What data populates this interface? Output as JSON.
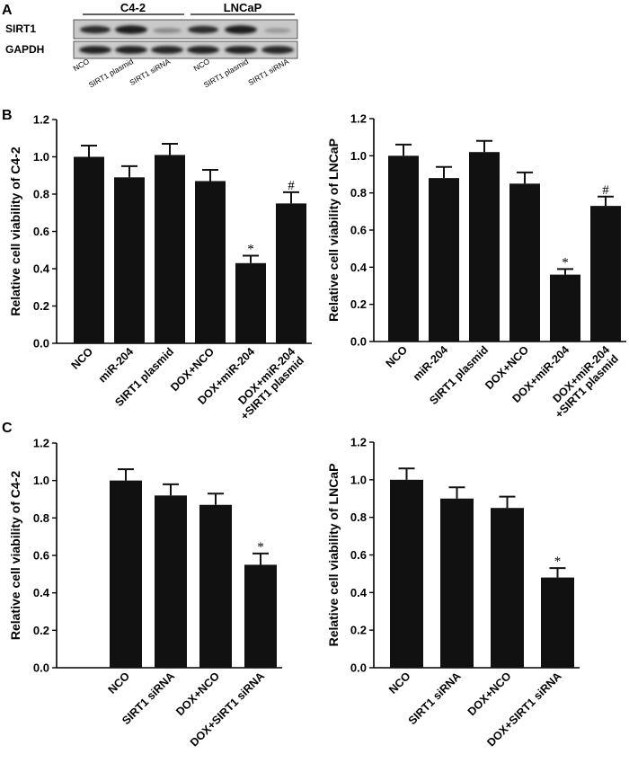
{
  "panel_letters": {
    "a": "A",
    "b": "B",
    "c": "C"
  },
  "blot": {
    "groups": [
      "C4-2",
      "LNCaP"
    ],
    "rows": [
      "SIRT1",
      "GAPDH"
    ],
    "lanes": [
      "NCO",
      "SIRT1 plasmid",
      "SIRT1 siRNA",
      "NCO",
      "SIRT1 plasmid",
      "SIRT1 siRNA"
    ]
  },
  "chart_data": [
    {
      "type": "bar",
      "panel": "B",
      "categories": [
        "NCO",
        "miR-204",
        "SIRT1 plasmid",
        "DOX+NCO",
        "DOX+miR-204",
        "DOX+miR-204 +SIRT1 plasmid"
      ],
      "values": [
        1.0,
        0.89,
        1.01,
        0.87,
        0.43,
        0.75
      ],
      "errors": [
        0.06,
        0.06,
        0.06,
        0.06,
        0.04,
        0.06
      ],
      "annotations": [
        "",
        "",
        "",
        "",
        "*",
        "#"
      ],
      "ylabel": "Relative cell viability of C4-2",
      "ylim": [
        0,
        1.2
      ],
      "yticks": [
        "0.0",
        "0.2",
        "0.4",
        "0.6",
        "0.8",
        "1.0",
        "1.2"
      ],
      "bar_color": "#111111"
    },
    {
      "type": "bar",
      "panel": "B",
      "categories": [
        "NCO",
        "miR-204",
        "SIRT1 plasmid",
        "DOX+NCO",
        "DOX+miR-204",
        "DOX+miR-204 +SIRT1 plasmid"
      ],
      "values": [
        1.0,
        0.88,
        1.02,
        0.85,
        0.36,
        0.73
      ],
      "errors": [
        0.06,
        0.06,
        0.06,
        0.06,
        0.03,
        0.05
      ],
      "annotations": [
        "",
        "",
        "",
        "",
        "*",
        "#"
      ],
      "ylabel": "Relative cell viability of LNCaP",
      "ylim": [
        0,
        1.2
      ],
      "yticks": [
        "0.0",
        "0.2",
        "0.4",
        "0.6",
        "0.8",
        "1.0",
        "1.2"
      ],
      "bar_color": "#111111"
    },
    {
      "type": "bar",
      "panel": "C",
      "categories": [
        "NCO",
        "SIRT1 siRNA",
        "DOX+NCO",
        "DOX+SIRT1 siRNA"
      ],
      "values": [
        1.0,
        0.92,
        0.87,
        0.55
      ],
      "errors": [
        0.06,
        0.06,
        0.06,
        0.06
      ],
      "annotations": [
        "",
        "",
        "",
        "*"
      ],
      "ylabel": "Relative cell viability of C4-2",
      "ylim": [
        0,
        1.2
      ],
      "yticks": [
        "0.0",
        "0.2",
        "0.4",
        "0.6",
        "0.8",
        "1.0",
        "1.2"
      ],
      "bar_color": "#111111"
    },
    {
      "type": "bar",
      "panel": "C",
      "categories": [
        "NCO",
        "SIRT1 siRNA",
        "DOX+NCO",
        "DOX+SIRT1 siRNA"
      ],
      "values": [
        1.0,
        0.9,
        0.85,
        0.48
      ],
      "errors": [
        0.06,
        0.06,
        0.06,
        0.05
      ],
      "annotations": [
        "",
        "",
        "",
        "*"
      ],
      "ylabel": "Relative cell viability of LNCaP",
      "ylim": [
        0,
        1.2
      ],
      "yticks": [
        "0.0",
        "0.2",
        "0.4",
        "0.6",
        "0.8",
        "1.0",
        "1.2"
      ],
      "bar_color": "#111111"
    }
  ]
}
